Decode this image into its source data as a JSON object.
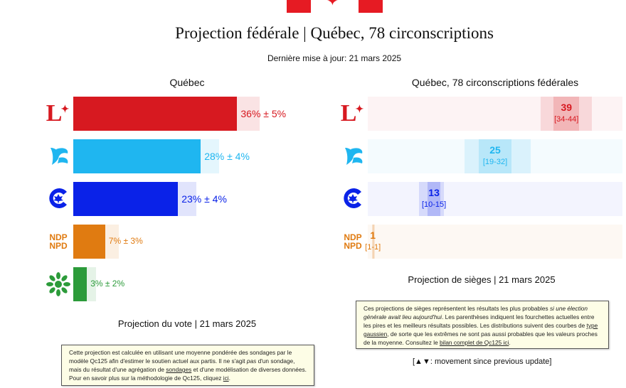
{
  "header": {
    "title": "Projection fédérale | Québec, 78 circonscriptions",
    "updated": "Dernière mise à jour: 21 mars 2025"
  },
  "vote_panel": {
    "title": "Québec",
    "footer": "Projection du vote | 21 mars 2025",
    "note": {
      "t1": "Cette projection est calculée en utilisant une moyenne pondérée des sondages par le modèle Qc125 afin d'estimer le soutien actuel aux partis. Il ne s'agit ",
      "t1_italic": "pas",
      "t2": " d'un sondage, mais du résultat d'une agrégation de ",
      "link1": "sondages",
      "t3": " et d'une modélisation de diverses données. Pour en savoir plus sur la méthodologie de Qc125, cliquez ",
      "link2": "ici",
      "t4": "."
    }
  },
  "seat_panel": {
    "title": "Québec, 78 circonscriptions fédérales",
    "footer": "Projection de sièges | 21 mars 2025",
    "note": {
      "t1": "Ces projections de sièges représentent les résultats les plus probables ",
      "t1_italic": "si une élection générale avait lieu aujourd'hui",
      "t2": ". Les parenthèses indiquent les fourchettes actuelles entre les pires et les meilleurs résultats possibles. Les distributions suivent des courbes de ",
      "link1": "type gaussien",
      "t3": ", de sorte que les extrêmes ne sont pas aussi probables que les valeurs proches de la moyenne. Consultez le ",
      "link2": "bilan complet de Qc125 ici",
      "t4": "."
    },
    "movement_legend": "[▲▼: movement since previous update]"
  },
  "parties": [
    {
      "id": "lpc",
      "logo_text": "L",
      "color": "#d71920"
    },
    {
      "id": "bq",
      "logo_text": "",
      "color": "#1fb6f0"
    },
    {
      "id": "cpc",
      "logo_text": "",
      "color": "#0a22e8"
    },
    {
      "id": "ndp",
      "logo_text": "NDP\nNPD",
      "color": "#e07b11"
    },
    {
      "id": "gpc",
      "logo_text": "",
      "color": "#2c9b3a"
    }
  ],
  "chart_data": [
    {
      "type": "bar",
      "orientation": "horizontal",
      "title": "Québec",
      "categories": [
        "PLC",
        "BQ",
        "PCC",
        "NPD",
        "PVC"
      ],
      "values": [
        36,
        28,
        23,
        7,
        3
      ],
      "margins": [
        5,
        4,
        4,
        3,
        2
      ],
      "labels": [
        "36% ± 5%",
        "28% ± 4%",
        "23% ± 4%",
        "7% ± 3%",
        "3% ± 2%"
      ],
      "xlim": [
        0,
        50
      ]
    },
    {
      "type": "bar",
      "orientation": "horizontal",
      "title": "Québec, 78 circonscriptions fédérales",
      "categories": [
        "PLC",
        "BQ",
        "PCC",
        "NPD"
      ],
      "values": [
        39,
        25,
        13,
        1
      ],
      "ranges": [
        [
          34,
          44
        ],
        [
          19,
          32
        ],
        [
          10,
          15
        ],
        [
          1,
          1
        ]
      ],
      "value_labels": [
        "39",
        "25",
        "13",
        "1"
      ],
      "range_labels": [
        "[34-44]",
        "[19-32]",
        "[10-15]",
        "[1-1]"
      ],
      "xlim": [
        0,
        50
      ]
    }
  ]
}
